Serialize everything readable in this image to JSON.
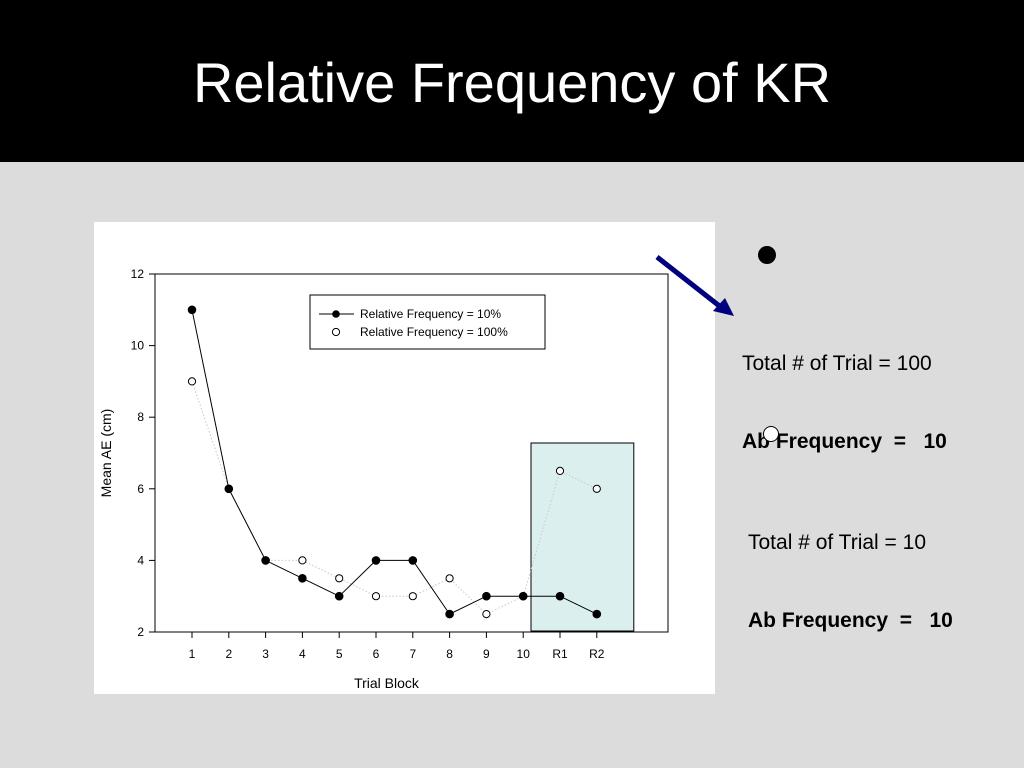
{
  "slide": {
    "title": "Relative Frequency of KR"
  },
  "notes": [
    {
      "marker": "filled-circle",
      "line1": "Total # of Trial = 100",
      "line2": "Ab Frequency  =   10"
    },
    {
      "marker": "open-circle",
      "line1": "Total # of Trial = 10",
      "line2": "Ab Frequency  =   10"
    }
  ],
  "colors": {
    "arrow": "#00007f",
    "highlight_box": "#dcefef"
  },
  "chart_data": {
    "type": "line",
    "xlabel": "Trial Block",
    "ylabel": "Mean AE (cm)",
    "categories": [
      "1",
      "2",
      "3",
      "4",
      "5",
      "6",
      "7",
      "8",
      "9",
      "10",
      "R1",
      "R2"
    ],
    "ylim": [
      2,
      12
    ],
    "yticks": [
      2,
      4,
      6,
      8,
      10,
      12
    ],
    "legend_position": "top-center",
    "series": [
      {
        "name": "Relative Frequency = 10%",
        "marker": "filled",
        "line": "solid",
        "values": [
          11,
          6,
          4,
          3.5,
          3,
          4,
          4,
          2.5,
          3,
          3,
          3,
          2.5
        ]
      },
      {
        "name": "Relative Frequency = 100%",
        "marker": "open",
        "line": "dotted",
        "values": [
          9,
          6,
          4,
          4,
          3.5,
          3,
          3,
          3.5,
          2.5,
          3,
          6.5,
          6
        ]
      }
    ],
    "highlighted_categories": [
      "R1",
      "R2"
    ]
  }
}
